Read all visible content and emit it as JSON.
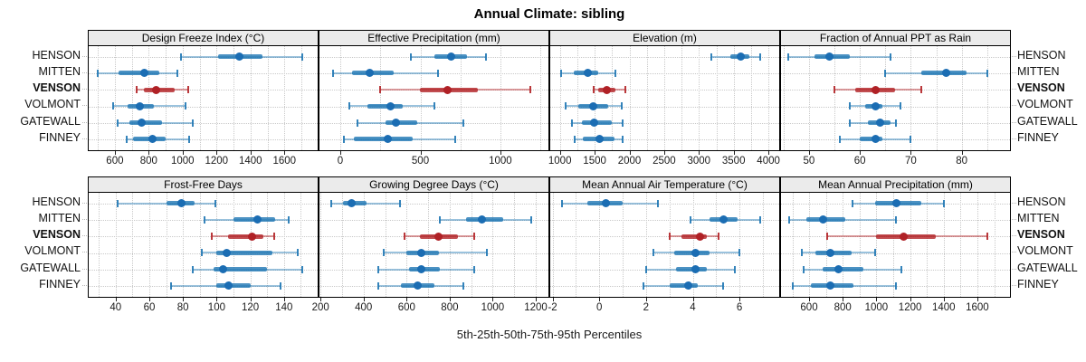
{
  "title": "Annual Climate: sibling",
  "caption": "5th-25th-50th-75th-95th Percentiles",
  "stations": [
    "HENSON",
    "MITTEN",
    "VENSON",
    "VOLMONT",
    "GATEWALL",
    "FINNEY"
  ],
  "highlight_station": "VENSON",
  "colors": {
    "normal": "#1f77b4",
    "normal_dot": "#1b6db3",
    "highlight": "#b22226",
    "highlight_dot": "#b02126",
    "strip_bg": "#ebebeb",
    "grid": "#c9c9c9",
    "border": "#000000"
  },
  "chart_data": {
    "type": "dotplot-interval",
    "note": "Each row shows 5th-25th-50th-75th-95th percentiles: thin whisker with end caps = 5th to 95th, thick bar = 25th to 75th, dot = 50th (median)",
    "percentile_order": [
      "5th",
      "25th",
      "50th",
      "75th",
      "95th"
    ],
    "grid_layout": {
      "rows": 2,
      "cols": 4
    },
    "panels": [
      {
        "title": "Design Freeze Index (°C)",
        "row": 0,
        "col": 0,
        "domain": [
          446,
          1796
        ],
        "ticks": [
          600,
          800,
          1000,
          1200,
          1400,
          1600
        ],
        "series": {
          "HENSON": [
            990,
            1210,
            1335,
            1470,
            1705
          ],
          "MITTEN": [
            500,
            620,
            775,
            860,
            970
          ],
          "VENSON": [
            730,
            770,
            845,
            955,
            1035
          ],
          "VOLMONT": [
            590,
            675,
            750,
            830,
            1015
          ],
          "GATEWALL": [
            615,
            685,
            760,
            880,
            1060
          ],
          "FINNEY": [
            670,
            710,
            820,
            900,
            1040
          ]
        }
      },
      {
        "title": "Effective Precipitation (mm)",
        "row": 0,
        "col": 1,
        "domain": [
          -130,
          1300
        ],
        "ticks": [
          0,
          500,
          1000
        ],
        "series": {
          "HENSON": [
            440,
            585,
            690,
            790,
            910
          ],
          "MITTEN": [
            -45,
            75,
            185,
            335,
            610
          ],
          "VENSON": [
            250,
            500,
            670,
            860,
            1185
          ],
          "VOLMONT": [
            55,
            170,
            315,
            390,
            590
          ],
          "GATEWALL": [
            110,
            280,
            350,
            480,
            770
          ],
          "FINNEY": [
            20,
            85,
            295,
            455,
            715
          ]
        }
      },
      {
        "title": "Elevation (m)",
        "row": 0,
        "col": 2,
        "domain": [
          860,
          4155
        ],
        "ticks": [
          1000,
          1500,
          2000,
          2500,
          3000,
          3500,
          4000
        ],
        "series": {
          "HENSON": [
            3180,
            3450,
            3600,
            3720,
            3880
          ],
          "MITTEN": [
            1020,
            1200,
            1400,
            1550,
            1800
          ],
          "VENSON": [
            1490,
            1550,
            1680,
            1800,
            1935
          ],
          "VOLMONT": [
            1075,
            1270,
            1475,
            1700,
            1885
          ],
          "GATEWALL": [
            1170,
            1310,
            1495,
            1740,
            1905
          ],
          "FINNEY": [
            1215,
            1330,
            1570,
            1785,
            1905
          ]
        }
      },
      {
        "title": "Fraction of Annual PPT as Rain",
        "row": 0,
        "col": 3,
        "domain": [
          44.5,
          89.5
        ],
        "ticks": [
          50,
          60,
          70,
          80
        ],
        "series": {
          "HENSON": [
            46,
            51,
            54,
            58,
            66
          ],
          "MITTEN": [
            65,
            72,
            77,
            81,
            85
          ],
          "VENSON": [
            55,
            59,
            63,
            67,
            72
          ],
          "VOLMONT": [
            58,
            61,
            63,
            64.5,
            68
          ],
          "GATEWALL": [
            58,
            61.5,
            64,
            66,
            67
          ],
          "FINNEY": [
            56,
            60,
            63,
            64.5,
            70
          ]
        }
      },
      {
        "title": "Frost-Free Days",
        "row": 1,
        "col": 0,
        "domain": [
          24,
          160
        ],
        "ticks": [
          40,
          60,
          80,
          100,
          120,
          140
        ],
        "series": {
          "HENSON": [
            41,
            70,
            79,
            87,
            99
          ],
          "MITTEN": [
            93,
            110,
            124,
            135,
            143
          ],
          "VENSON": [
            97,
            107,
            121,
            128,
            134
          ],
          "VOLMONT": [
            91,
            100,
            106,
            133,
            148
          ],
          "GATEWALL": [
            86,
            98,
            104,
            130,
            151
          ],
          "FINNEY": [
            73,
            100,
            107,
            120,
            138
          ]
        }
      },
      {
        "title": "Growing Degree Days (°C)",
        "row": 1,
        "col": 1,
        "domain": [
          195,
          1259
        ],
        "ticks": [
          200,
          400,
          600,
          800,
          1000,
          1200
        ],
        "series": {
          "HENSON": [
            250,
            305,
            345,
            415,
            570
          ],
          "MITTEN": [
            755,
            875,
            950,
            1050,
            1180
          ],
          "VENSON": [
            590,
            660,
            750,
            840,
            915
          ],
          "VOLMONT": [
            495,
            600,
            670,
            750,
            975
          ],
          "GATEWALL": [
            470,
            610,
            670,
            755,
            915
          ],
          "FINNEY": [
            470,
            575,
            650,
            730,
            865
          ]
        }
      },
      {
        "title": "Mean Annual Air Temperature (°C)",
        "row": 1,
        "col": 2,
        "domain": [
          -2.1,
          7.7
        ],
        "ticks": [
          -2,
          0,
          2,
          4,
          6
        ],
        "series": {
          "HENSON": [
            -1.6,
            -0.5,
            0.3,
            1.0,
            2.5
          ],
          "MITTEN": [
            3.9,
            4.7,
            5.3,
            5.9,
            6.9
          ],
          "VENSON": [
            3.0,
            3.5,
            4.3,
            4.6,
            5.1
          ],
          "VOLMONT": [
            2.3,
            3.2,
            4.1,
            4.7,
            6.0
          ],
          "GATEWALL": [
            2.0,
            3.3,
            4.1,
            4.6,
            5.8
          ],
          "FINNEY": [
            1.9,
            3.0,
            3.8,
            4.2,
            5.3
          ]
        }
      },
      {
        "title": "Mean Annual Precipitation (mm)",
        "row": 1,
        "col": 3,
        "domain": [
          433,
          1794
        ],
        "ticks": [
          600,
          800,
          1000,
          1200,
          1400,
          1600
        ],
        "series": {
          "HENSON": [
            860,
            990,
            1120,
            1265,
            1400
          ],
          "MITTEN": [
            480,
            585,
            685,
            815,
            1115
          ],
          "VENSON": [
            710,
            1000,
            1160,
            1355,
            1660
          ],
          "VOLMONT": [
            555,
            635,
            725,
            850,
            995
          ],
          "GATEWALL": [
            570,
            680,
            775,
            920,
            1150
          ],
          "FINNEY": [
            505,
            610,
            725,
            865,
            1115
          ]
        }
      }
    ]
  }
}
